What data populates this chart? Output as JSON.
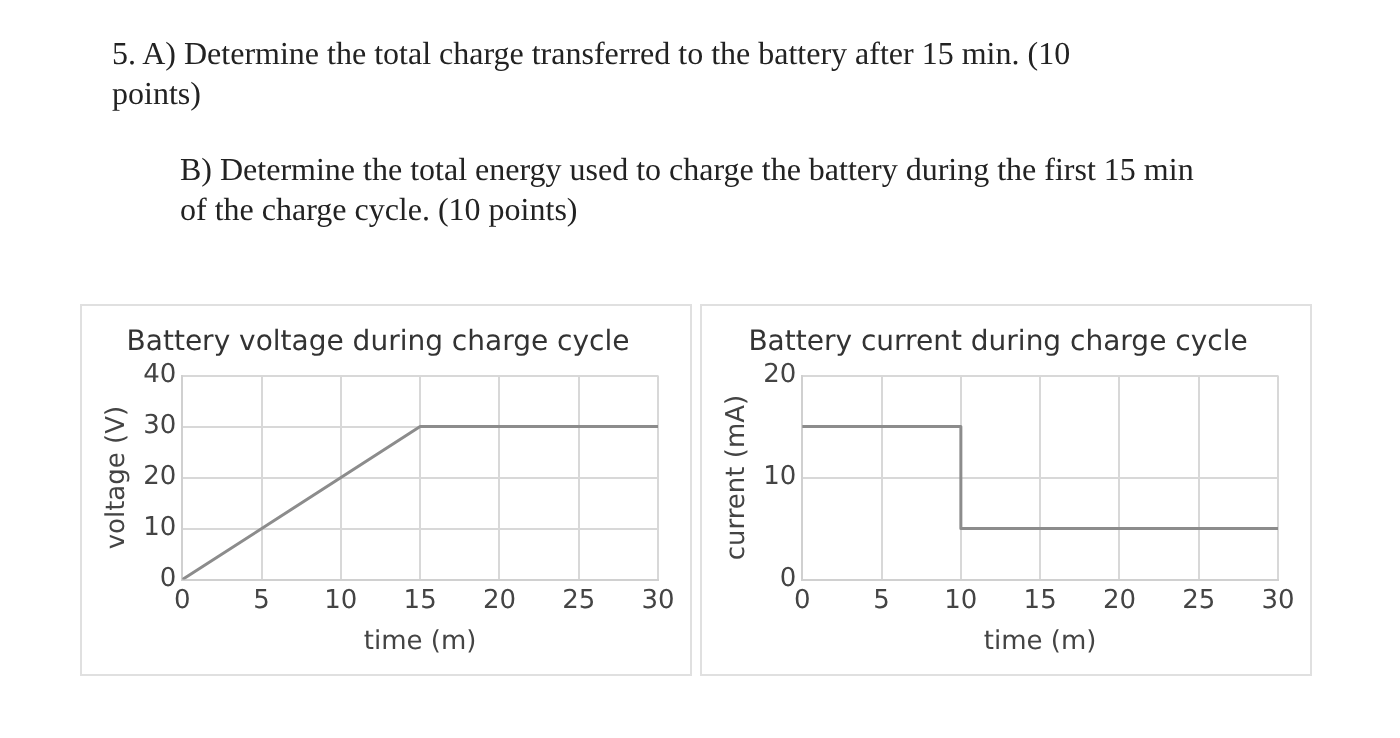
{
  "chart_data": [
    {
      "type": "line",
      "title": "Battery voltage during charge cycle",
      "xlabel": "time (m)",
      "ylabel": "voltage (V)",
      "annotations": [
        "5. A) Determine the total charge transferred to the battery after 15 min. (10 points)",
        "B) Determine the total energy used to charge the battery during the first 15 min of the charge cycle. (10 points)"
      ],
      "x": [
        0,
        15,
        30
      ],
      "series": [
        {
          "color": "#8c8c8c",
          "values": [
            0,
            30,
            30
          ]
        }
      ],
      "xlim": [
        0,
        30
      ],
      "xticks": [
        0,
        5,
        10,
        15,
        20,
        25,
        30
      ],
      "ylim": [
        0,
        40
      ],
      "yticks": [
        0,
        10,
        20,
        30,
        40
      ],
      "grid": true,
      "legend": false
    },
    {
      "type": "step",
      "title": "Battery current during charge cycle",
      "xlabel": "time (m)",
      "ylabel": "current (mA)",
      "x": [
        0,
        10,
        30
      ],
      "series": [
        {
          "color": "#8c8c8c",
          "values": [
            15,
            5,
            5
          ]
        }
      ],
      "xlim": [
        0,
        30
      ],
      "xticks": [
        0,
        5,
        10,
        15,
        20,
        25,
        30
      ],
      "ylim": [
        0,
        20
      ],
      "yticks": [
        0,
        10,
        20
      ],
      "grid": true,
      "legend": false
    }
  ]
}
